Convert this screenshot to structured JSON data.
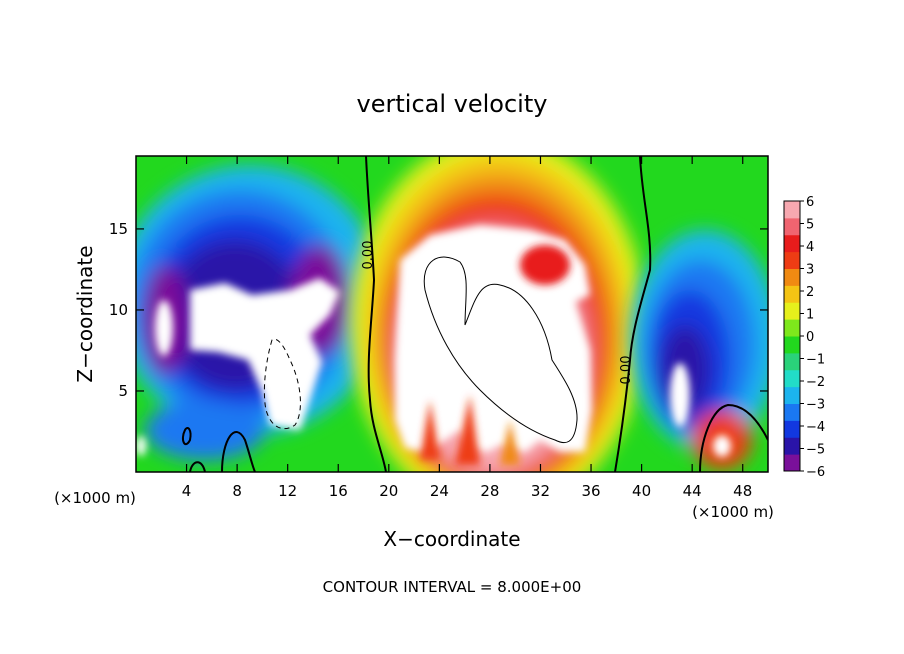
{
  "chart_data": {
    "type": "heatmap",
    "title": "vertical velocity",
    "xlabel": "X−coordinate",
    "ylabel": "Z−coordinate",
    "x_unit_label": "(×1000 m)",
    "x_unit_label_right": "(×1000 m)",
    "footer": "CONTOUR INTERVAL = 8.000E+00",
    "xlim": [
      0,
      50
    ],
    "ylim": [
      0,
      19.5
    ],
    "x_ticks": [
      4,
      8,
      12,
      16,
      20,
      24,
      28,
      32,
      36,
      40,
      44,
      48
    ],
    "x_tick_labels": [
      "4",
      "8",
      "12",
      "16",
      "20",
      "24",
      "28",
      "32",
      "36",
      "40",
      "44",
      "48"
    ],
    "y_ticks": [
      5,
      10,
      15
    ],
    "y_tick_labels": [
      "5",
      "10",
      "15"
    ],
    "colorbar": {
      "range": [
        -6,
        6
      ],
      "labels": [
        "6",
        "5",
        "4",
        "3",
        "2",
        "1",
        "0",
        "−1",
        "−2",
        "−3",
        "−4",
        "−5",
        "−6"
      ],
      "colors": [
        "#7a109a",
        "#2a14a8",
        "#1238e0",
        "#1a78f2",
        "#1cb4ee",
        "#22dcc8",
        "#2ad27a",
        "#22d81e",
        "#7ee81c",
        "#e6f01c",
        "#f4c414",
        "#f08a12",
        "#ee3c14",
        "#e81c1c",
        "#f06470",
        "#f7a8b0"
      ]
    },
    "contour_labels": [
      "0.00",
      "0.00"
    ],
    "grid": false
  },
  "colors": {
    "axis": "#000000",
    "background": "#ffffff",
    "saturated": "#ffffff"
  }
}
